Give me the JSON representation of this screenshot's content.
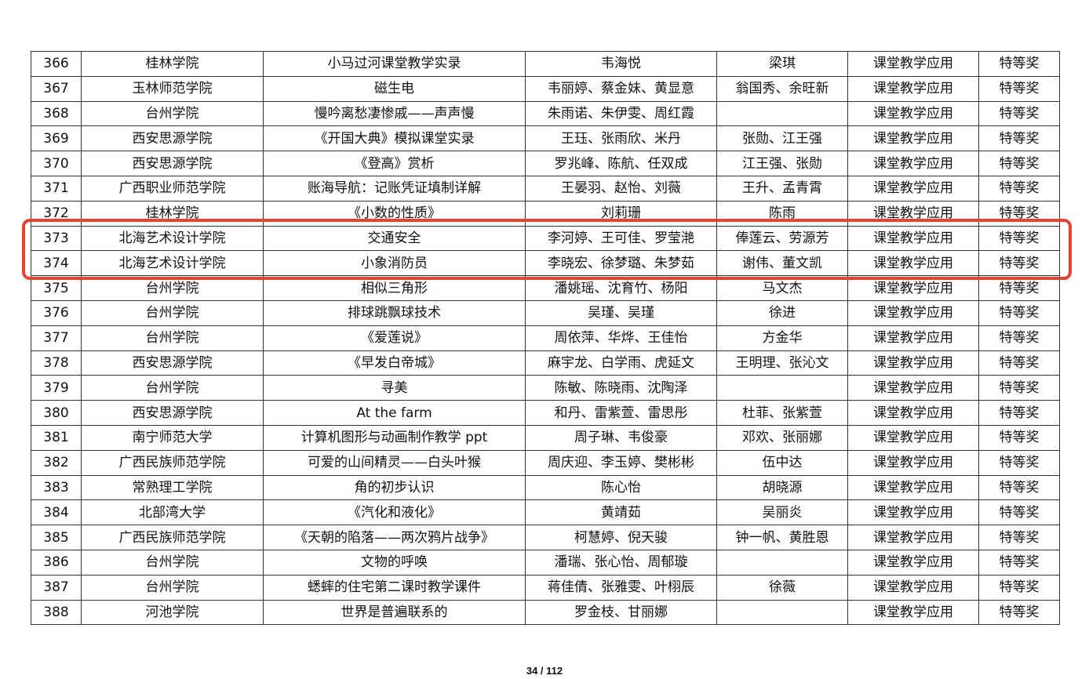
{
  "table": {
    "rows": [
      [
        "366",
        "桂林学院",
        "小马过河课堂教学实录",
        "韦海悦",
        "梁琪",
        "课堂教学应用",
        "特等奖"
      ],
      [
        "367",
        "玉林师范学院",
        "磁生电",
        "韦丽婷、蔡金妹、黄显意",
        "翁国秀、余旺新",
        "课堂教学应用",
        "特等奖"
      ],
      [
        "368",
        "台州学院",
        "慢吟离愁凄惨戚——声声慢",
        "朱雨诺、朱伊雯、周红霞",
        "",
        "课堂教学应用",
        "特等奖"
      ],
      [
        "369",
        "西安思源学院",
        "《开国大典》模拟课堂实录",
        "王珏、张雨欣、米丹",
        "张勋、江王强",
        "课堂教学应用",
        "特等奖"
      ],
      [
        "370",
        "西安思源学院",
        "《登高》赏析",
        "罗兆峰、陈航、任双成",
        "江王强、张勋",
        "课堂教学应用",
        "特等奖"
      ],
      [
        "371",
        "广西职业师范学院",
        "账海导航：记账凭证填制详解",
        "王晏羽、赵怡、刘薇",
        "王升、孟青霄",
        "课堂教学应用",
        "特等奖"
      ],
      [
        "372",
        "桂林学院",
        "《小数的性质》",
        "刘莉珊",
        "陈雨",
        "课堂教学应用",
        "特等奖"
      ],
      [
        "373",
        "北海艺术设计学院",
        "交通安全",
        "李河婷、王可佳、罗莹滟",
        "俸莲云、劳源芳",
        "课堂教学应用",
        "特等奖"
      ],
      [
        "374",
        "北海艺术设计学院",
        "小象消防员",
        "李晓宏、徐梦璐、朱梦茹",
        "谢伟、董文凯",
        "课堂教学应用",
        "特等奖"
      ],
      [
        "375",
        "台州学院",
        "相似三角形",
        "潘姚瑶、沈育竹、杨阳",
        "马文杰",
        "课堂教学应用",
        "特等奖"
      ],
      [
        "376",
        "台州学院",
        "排球跳飘球技术",
        "吴瑾、吴瑾",
        "徐进",
        "课堂教学应用",
        "特等奖"
      ],
      [
        "377",
        "台州学院",
        "《爱莲说》",
        "周依萍、华烨、王佳怡",
        "方金华",
        "课堂教学应用",
        "特等奖"
      ],
      [
        "378",
        "西安思源学院",
        "《早发白帝城》",
        "麻宇龙、白学雨、虎延文",
        "王明理、张沁文",
        "课堂教学应用",
        "特等奖"
      ],
      [
        "379",
        "台州学院",
        "寻美",
        "陈敏、陈晓雨、沈陶泽",
        "",
        "课堂教学应用",
        "特等奖"
      ],
      [
        "380",
        "西安思源学院",
        "At the farm",
        "和丹、雷紫萱、雷思彤",
        "杜菲、张紫萱",
        "课堂教学应用",
        "特等奖"
      ],
      [
        "381",
        "南宁师范大学",
        "计算机图形与动画制作教学 ppt",
        "周子琳、韦俊豪",
        "邓欢、张丽娜",
        "课堂教学应用",
        "特等奖"
      ],
      [
        "382",
        "广西民族师范学院",
        "可爱的山间精灵——白头叶猴",
        "周庆迎、李玉婷、樊彬彬",
        "伍中达",
        "课堂教学应用",
        "特等奖"
      ],
      [
        "383",
        "常熟理工学院",
        "角的初步认识",
        "陈心怡",
        "胡晓源",
        "课堂教学应用",
        "特等奖"
      ],
      [
        "384",
        "北部湾大学",
        "《汽化和液化》",
        "黄靖茹",
        "吴丽炎",
        "课堂教学应用",
        "特等奖"
      ],
      [
        "385",
        "广西民族师范学院",
        "《天朝的陷落——两次鸦片战争》",
        "柯慧婷、倪天骏",
        "钟一帆、黄胜恩",
        "课堂教学应用",
        "特等奖"
      ],
      [
        "386",
        "台州学院",
        "文物的呼唤",
        "潘瑞、张心怡、周郁璇",
        "",
        "课堂教学应用",
        "特等奖"
      ],
      [
        "387",
        "台州学院",
        "蟋蟀的住宅第二课时教学课件",
        "蒋佳倩、张雅雯、叶栩辰",
        "徐薇",
        "课堂教学应用",
        "特等奖"
      ],
      [
        "388",
        "河池学院",
        "世界是普遍联系的",
        "罗金枝、甘丽娜",
        "",
        "课堂教学应用",
        "特等奖"
      ]
    ]
  },
  "highlight": {
    "color": "#e8432e",
    "rows": [
      "373",
      "374"
    ]
  },
  "footer": {
    "page": "34 / 112"
  }
}
